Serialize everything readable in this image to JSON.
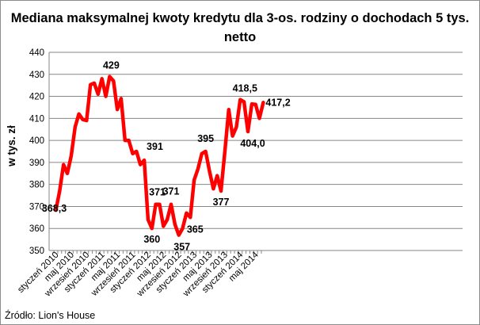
{
  "chart_data": {
    "type": "line",
    "title": "Mediana maksymalnej kwoty kredytu dla 3-os. rodziny o dochodach 5 tys. netto",
    "ylabel": "w tys. zł",
    "xlabel": "",
    "ylim": [
      350,
      440
    ],
    "yticks": [
      350,
      360,
      370,
      380,
      390,
      400,
      410,
      420,
      430,
      440
    ],
    "grid": true,
    "legend": "none",
    "line_color": "#ff0000",
    "x_tick_labels": [
      {
        "index": 0,
        "label": "styczeń 2010"
      },
      {
        "index": 4,
        "label": "maj 2010"
      },
      {
        "index": 8,
        "label": "wrzesień 2010"
      },
      {
        "index": 12,
        "label": "styczeń 2011"
      },
      {
        "index": 16,
        "label": "maj 2011"
      },
      {
        "index": 20,
        "label": "wrzesień 2011"
      },
      {
        "index": 24,
        "label": "styczeń 2012"
      },
      {
        "index": 28,
        "label": "maj 2012"
      },
      {
        "index": 32,
        "label": "wrzesień 2012"
      },
      {
        "index": 36,
        "label": "styczeń 2013"
      },
      {
        "index": 40,
        "label": "maj 2013"
      },
      {
        "index": 44,
        "label": "wrzesień 2013"
      },
      {
        "index": 48,
        "label": "styczeń 2014"
      },
      {
        "index": 52,
        "label": "maj 2014"
      }
    ],
    "values": [
      368.3,
      377,
      389,
      385,
      393,
      406,
      412,
      409.5,
      409,
      425.3,
      426,
      421,
      428,
      420,
      429,
      427,
      414,
      419,
      400,
      400,
      394,
      395,
      389,
      391,
      364,
      360,
      371,
      371,
      361,
      364,
      371,
      362,
      357,
      360,
      367,
      365,
      382,
      387,
      394,
      395,
      386,
      378,
      384,
      377,
      395,
      414,
      402,
      406,
      418.5,
      417.5,
      404,
      416.5,
      416.3,
      410,
      417.2
    ],
    "data_labels": [
      {
        "index": 0,
        "text": "368,3"
      },
      {
        "index": 14,
        "text": "429"
      },
      {
        "index": 23,
        "text": "391"
      },
      {
        "index": 25,
        "text": "360"
      },
      {
        "index": 26,
        "text": "371"
      },
      {
        "index": 30,
        "text": "371"
      },
      {
        "index": 32,
        "text": "357"
      },
      {
        "index": 35,
        "text": "365"
      },
      {
        "index": 39,
        "text": "395"
      },
      {
        "index": 43,
        "text": "377"
      },
      {
        "index": 48,
        "text": "418,5"
      },
      {
        "index": 50,
        "text": "404,0"
      },
      {
        "index": 54,
        "text": "417,2"
      }
    ]
  },
  "source": "Źródło: Lion's House"
}
